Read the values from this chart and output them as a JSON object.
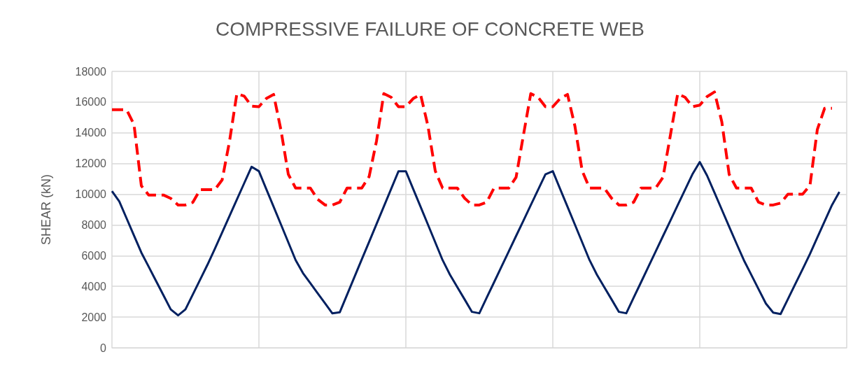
{
  "chart_data": {
    "type": "line",
    "title": "COMPRESSIVE FAILURE OF CONCRETE WEB",
    "ylabel": "SHEAR (kN)",
    "categories": [
      null,
      null,
      null,
      null,
      null,
      null,
      null,
      null,
      null,
      null,
      null,
      null,
      null,
      null,
      null,
      null,
      null,
      null,
      null,
      null,
      null,
      null,
      null,
      null,
      null,
      null,
      null,
      null,
      null,
      null,
      null,
      null,
      null,
      null,
      null,
      null,
      null,
      null,
      null,
      null,
      null,
      null,
      null,
      null,
      null,
      null,
      null,
      null,
      null,
      null,
      null,
      null,
      null,
      null,
      null,
      null,
      null,
      null,
      null,
      null,
      null,
      null,
      null,
      null,
      null,
      null,
      null,
      null,
      null,
      null,
      null,
      null,
      null,
      null,
      null,
      null,
      null,
      null,
      null,
      null,
      null,
      null,
      null,
      null,
      null,
      null,
      null,
      null,
      null,
      null,
      null,
      null,
      null,
      null,
      null,
      null,
      null,
      null,
      null,
      null,
      null
    ],
    "ylim": [
      0,
      18000
    ],
    "yticks": [
      0,
      2000,
      4000,
      6000,
      8000,
      10000,
      12000,
      14000,
      16000,
      18000
    ],
    "grid": true,
    "marker": "none",
    "series": [
      {
        "color": "#ff0000",
        "line_style": "dashed",
        "values": [
          15500,
          15500,
          15500,
          14540,
          10550,
          9950,
          9950,
          9950,
          9730,
          9300,
          9300,
          9470,
          10300,
          10300,
          10300,
          10940,
          13450,
          16550,
          16390,
          15740,
          15700,
          16230,
          16500,
          14180,
          11300,
          10400,
          10400,
          10400,
          9670,
          9300,
          9300,
          9480,
          10400,
          10400,
          10400,
          11150,
          13450,
          16550,
          16310,
          15700,
          15700,
          16230,
          16500,
          14460,
          11520,
          10400,
          10400,
          10400,
          9740,
          9300,
          9300,
          9480,
          10400,
          10400,
          10400,
          11100,
          13840,
          16550,
          16310,
          15700,
          15700,
          16230,
          16500,
          14460,
          11520,
          10400,
          10400,
          10400,
          9740,
          9300,
          9300,
          9480,
          10400,
          10400,
          10400,
          11100,
          13840,
          16550,
          16310,
          15700,
          15800,
          16360,
          16660,
          14720,
          11300,
          10400,
          10400,
          10400,
          9480,
          9300,
          9300,
          9420,
          10000,
          10000,
          10000,
          10570,
          14210,
          15600,
          15600,
          null,
          null
        ]
      },
      {
        "color": "#002060",
        "line_style": "solid",
        "values": [
          10200,
          9530,
          8420,
          7310,
          6200,
          5280,
          4350,
          3430,
          2500,
          2110,
          2500,
          3470,
          4440,
          5410,
          6440,
          7510,
          8580,
          9650,
          10720,
          11790,
          11500,
          10340,
          9190,
          8030,
          6870,
          5710,
          4860,
          4210,
          3550,
          2900,
          2240,
          2310,
          3460,
          4610,
          5760,
          6900,
          8050,
          9200,
          10350,
          11500,
          11500,
          10340,
          9190,
          8030,
          6870,
          5710,
          4760,
          3950,
          3150,
          2340,
          2250,
          3260,
          4260,
          5270,
          6270,
          7280,
          8280,
          9290,
          10290,
          11300,
          11500,
          10340,
          9190,
          8030,
          6870,
          5710,
          4760,
          3950,
          3150,
          2340,
          2250,
          3260,
          4260,
          5270,
          6270,
          7280,
          8280,
          9290,
          10290,
          11300,
          12100,
          11210,
          10110,
          9000,
          7890,
          6790,
          5710,
          4770,
          3820,
          2880,
          2290,
          2200,
          3170,
          4150,
          5120,
          6110,
          7180,
          8240,
          9300,
          10150,
          null
        ]
      }
    ]
  }
}
